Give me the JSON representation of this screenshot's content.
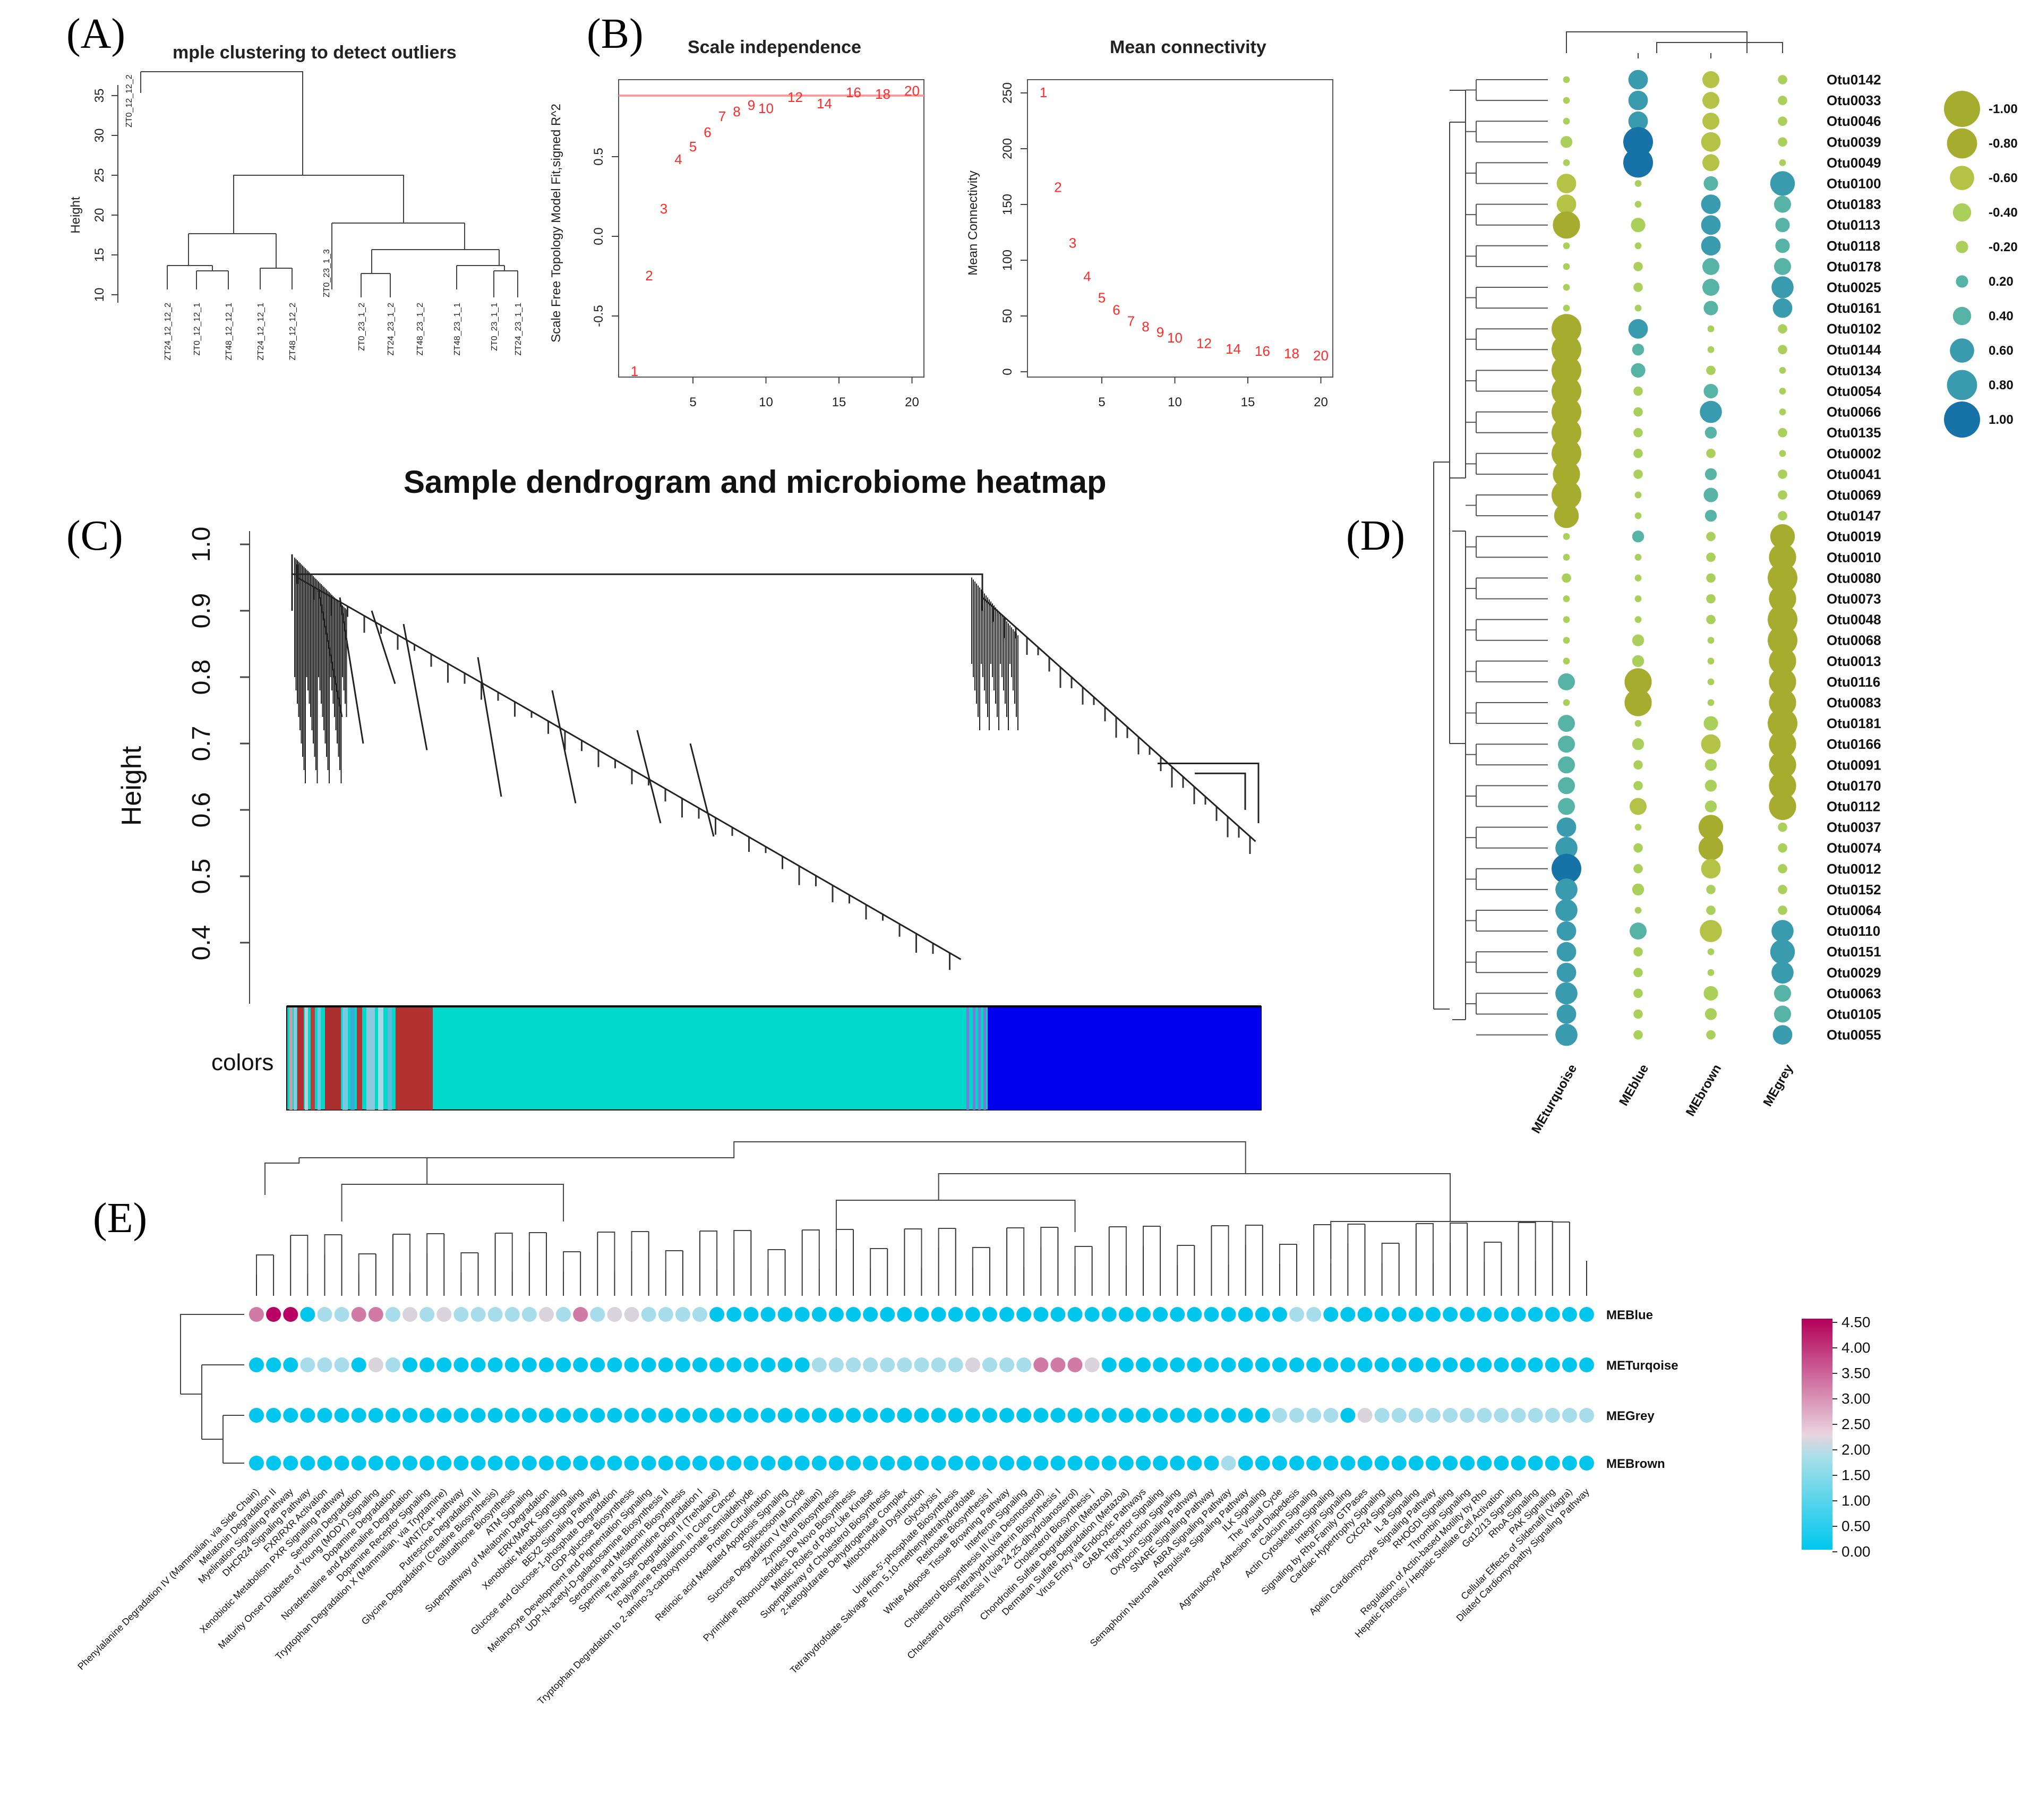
{
  "panels": {
    "A": {
      "label": "(A)",
      "title": "mple clustering to detect outliers",
      "ylabel": "Height",
      "yticks": [
        "10",
        "15",
        "20",
        "25",
        "30",
        "35"
      ],
      "samples": [
        "ZT24_12_12_2",
        "ZT0_12_12_1",
        "ZT48_12_12_1",
        "ZT24_12_12_1",
        "ZT48_12_12_2",
        "ZT0_23_1_2",
        "ZT24_23_1_2",
        "ZT48_23_1_2",
        "ZT48_23_1_1",
        "ZT0_23_1_1",
        "ZT24_23_1_1"
      ],
      "outlier": "ZT0_12_12_2",
      "outlier_side": "ZT0_23_1_3"
    },
    "B": {
      "label": "(B)",
      "scale_title": "Scale independence",
      "scale_ylabel": "Scale Free Topology Model Fit,signed R^2",
      "scale_yticks": [
        "-0.5",
        "0.0",
        "0.5"
      ],
      "scale_xticks": [
        "5",
        "10",
        "15",
        "20"
      ],
      "conn_title": "Mean connectivity",
      "conn_ylabel": "Mean Connectivity",
      "conn_yticks": [
        "0",
        "50",
        "100",
        "150",
        "200",
        "250"
      ],
      "conn_xticks": [
        "5",
        "10",
        "15",
        "20"
      ],
      "powers": [
        "1",
        "2",
        "3",
        "4",
        "5",
        "6",
        "7",
        "8",
        "9",
        "10",
        "12",
        "14",
        "16",
        "18",
        "20"
      ]
    },
    "C": {
      "label": "(C)",
      "title": "Sample dendrogram and microbiome heatmap",
      "ylabel": "Height",
      "yticks": [
        "0.4",
        "0.5",
        "0.6",
        "0.7",
        "0.8",
        "0.9",
        "1.0"
      ],
      "colors_label": "colors"
    },
    "D": {
      "label": "(D)",
      "columns": [
        "MEturquoise",
        "MEblue",
        "MEbrown",
        "MEgrey"
      ],
      "otus": [
        "Otu0142",
        "Otu0033",
        "Otu0046",
        "Otu0039",
        "Otu0049",
        "Otu0100",
        "Otu0183",
        "Otu0113",
        "Otu0118",
        "Otu0178",
        "Otu0025",
        "Otu0161",
        "Otu0102",
        "Otu0144",
        "Otu0134",
        "Otu0054",
        "Otu0066",
        "Otu0135",
        "Otu0002",
        "Otu0041",
        "Otu0069",
        "Otu0147",
        "Otu0019",
        "Otu0010",
        "Otu0080",
        "Otu0073",
        "Otu0048",
        "Otu0068",
        "Otu0013",
        "Otu0116",
        "Otu0083",
        "Otu0181",
        "Otu0166",
        "Otu0091",
        "Otu0170",
        "Otu0112",
        "Otu0037",
        "Otu0074",
        "Otu0012",
        "Otu0152",
        "Otu0064",
        "Otu0110",
        "Otu0151",
        "Otu0029",
        "Otu0063",
        "Otu0105",
        "Otu0055"
      ],
      "legend": [
        "-1.00",
        "-0.80",
        "-0.60",
        "-0.40",
        "-0.20",
        "0.20",
        "0.40",
        "0.60",
        "0.80",
        "1.00"
      ]
    },
    "E": {
      "label": "(E)",
      "rows": [
        "MEBlue",
        "METurqoise",
        "MEGrey",
        "MEBrown"
      ],
      "scale": [
        "4.50",
        "4.00",
        "3.50",
        "3.00",
        "2.50",
        "2.00",
        "1.50",
        "1.00",
        "0.50",
        "0.00"
      ],
      "pathways": [
        "Phenylalanine Degradation IV (Mammalian, via Side Chain)",
        "Melatonin Degradation II",
        "Myelination Signaling Pathway",
        "DHCR24 Signaling Pathway",
        "FXR/RXR Activation",
        "Xenobiotic Metabolism PXR Signaling Pathway",
        "Serotonin Degradation",
        "Maturity Onset Diabetes of Young (MODY) Signaling",
        "Dopamine Degradation",
        "Noradrenaline and Adrenaline Degradation",
        "Dopamine Receptor Signaling",
        "Tryptophan Degradation X (Mammalian, via Tryptamine)",
        "WNT/Ca+ pathway",
        "Putrescine Degradation III",
        "Glycine Degradation (Creatine Biosynthesis)",
        "Glutathione Biosynthesis",
        "ATM Signaling",
        "Superpathway of Melatonin Degradation",
        "ERK/MAPK Signaling",
        "Xenobiotic Metabolism Signaling",
        "BEX2 Signaling Pathway",
        "Glucose and Glucose-1-phosphate Degradation",
        "GDP-glucose Biosynthesis",
        "Melanocyte Development and Pigmentation Signaling",
        "UDP-N-acetyl-D-galactosamine Biosynthesis II",
        "Serotonin and Melatonin Biosynthesis",
        "Spermine and Spermidine Degradation I",
        "Trehalose Degradation II (Trehalase)",
        "Polyamine Regulation in Colon Cancer",
        "Tryptophan Degradation to 2-amino-3-carboxymuconate Semialdehyde",
        "Protein Citrullination",
        "Retinoic acid Mediated Apoptosis Signaling",
        "Spliceosomal Cycle",
        "Sucrose Degradation V (Mammalian)",
        "Zymosterol Biosynthesis",
        "Pyrimidine Ribonucleotides De Novo Biosynthesis",
        "Mitotic Roles of Polo-Like Kinase",
        "Superpathway of Cholesterol Biosynthesis",
        "2-ketoglutarate Dehydrogenase Complex",
        "Mitochondrial Dysfunction",
        "Glycolysis I",
        "Uridine-5'-phosphate Biosynthesis",
        "Tetrahydrofolate Salvage from 5,10-methenyltetrahydrofolate",
        "Retinoate Biosynthesis I",
        "White Adipose Tissue Browning Pathway",
        "Interferon Signaling",
        "Cholesterol Biosynthesis III (via Desmosterol)",
        "Tetrahydrobiopterin Biosynthesis I",
        "Cholesterol Biosynthesis II (via 24,25-dihydrolanosterol)",
        "Cholesterol Biosynthesis I",
        "Chondroitin Sulfate Degradation (Metazoa)",
        "Dermatan Sulfate Degradation (Metazoa)",
        "Virus Entry via Endocytic Pathways",
        "GABA Receptor Signaling",
        "Tight Junction Signaling",
        "Oxytocin Signaling Pathway",
        "SNARE Signaling Pathway",
        "ABRA Signaling Pathway",
        "Semaphorin Neuronal Repulsive Signaling Pathway",
        "ILK Signaling",
        "The Visual Cycle",
        "Agranulocyte Adhesion and Diapedesis",
        "Calcium Signaling",
        "Actin Cytoskeleton Signaling",
        "Integrin Signaling",
        "Signaling by Rho Family GTPases",
        "Cardiac Hypertrophy Signaling",
        "CXCR4 Signaling",
        "IL-8 Signaling",
        "Apelin Cardiomyocyte Signaling Pathway",
        "RHOGDI Signaling",
        "Thrombin Signaling",
        "Regulation of Actin-based Motility by Rho",
        "Hepatic Fibrosis / Hepatic Stellate Cell Activation",
        "Gα12/13 Signaling",
        "RhoA Signaling",
        "PAK Signaling",
        "Cellular Effects of Sildenafil (Viagra)",
        "Dilated Cardiomyopathy Signaling Pathway"
      ]
    }
  }
}
